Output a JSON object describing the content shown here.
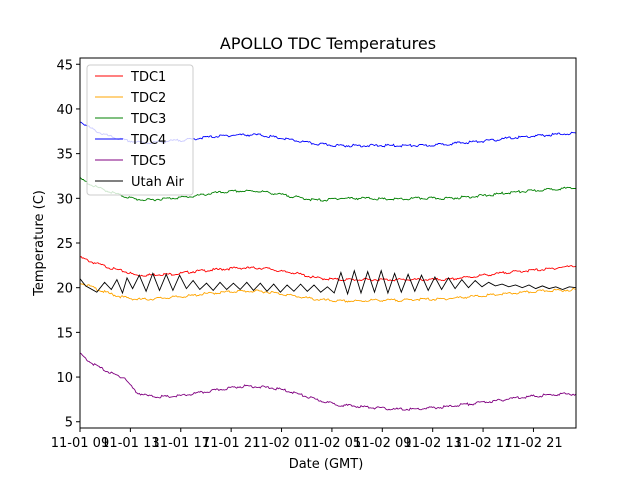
{
  "chart_data": {
    "type": "line",
    "title": "APOLLO TDC Temperatures",
    "xlabel": "Date (GMT)",
    "ylabel": "Temperature (C)",
    "xlim": [
      0,
      44.3
    ],
    "ylim": [
      4.3,
      45.7
    ],
    "yticks": [
      5,
      10,
      15,
      20,
      25,
      30,
      35,
      40,
      45
    ],
    "xticks": [
      {
        "x": 0,
        "label": "11-01 09"
      },
      {
        "x": 4.5,
        "label": "11-01 13"
      },
      {
        "x": 9,
        "label": "11-01 17"
      },
      {
        "x": 13.5,
        "label": "11-01 21"
      },
      {
        "x": 18,
        "label": "11-02 01"
      },
      {
        "x": 22.5,
        "label": "11-02 05"
      },
      {
        "x": 27,
        "label": "11-02 09"
      },
      {
        "x": 31.5,
        "label": "11-02 13"
      },
      {
        "x": 36,
        "label": "11-02 17"
      },
      {
        "x": 40.5,
        "label": "11-02 21"
      }
    ],
    "legend_position": "top-left",
    "series": [
      {
        "name": "TDC1",
        "color": "#ff0000",
        "x": [
          0,
          1,
          2,
          3,
          4,
          5,
          6,
          7,
          8,
          9,
          10,
          11,
          12,
          13,
          14,
          15,
          16,
          17,
          18,
          19,
          20,
          21,
          22,
          23,
          24,
          25,
          26,
          27,
          28,
          29,
          30,
          31,
          32,
          33,
          34,
          35,
          36,
          37,
          38,
          39,
          40,
          41,
          42,
          43,
          44.3
        ],
        "y": [
          23.4,
          22.9,
          22.5,
          22.1,
          21.8,
          21.4,
          21.4,
          21.5,
          21.5,
          21.6,
          21.8,
          21.9,
          22.0,
          22.1,
          22.2,
          22.2,
          22.2,
          22.1,
          21.8,
          21.7,
          21.4,
          21.1,
          21.0,
          20.9,
          20.9,
          20.9,
          20.9,
          20.9,
          20.9,
          20.9,
          20.9,
          20.9,
          20.9,
          20.9,
          21.1,
          21.2,
          21.4,
          21.5,
          21.7,
          21.8,
          21.9,
          22.0,
          22.1,
          22.3,
          22.4
        ]
      },
      {
        "name": "TDC2",
        "color": "#ffa500",
        "x": [
          0,
          1,
          2,
          3,
          4,
          5,
          6,
          7,
          8,
          9,
          10,
          11,
          12,
          13,
          14,
          15,
          16,
          17,
          18,
          19,
          20,
          21,
          22,
          23,
          24,
          25,
          26,
          27,
          28,
          29,
          30,
          31,
          32,
          33,
          34,
          35,
          36,
          37,
          38,
          39,
          40,
          41,
          42,
          43,
          44.3
        ],
        "y": [
          20.6,
          20.1,
          19.6,
          19.2,
          18.9,
          18.7,
          18.7,
          18.8,
          18.9,
          19.0,
          19.1,
          19.3,
          19.4,
          19.5,
          19.6,
          19.6,
          19.6,
          19.5,
          19.3,
          19.1,
          18.9,
          18.7,
          18.6,
          18.5,
          18.5,
          18.5,
          18.6,
          18.6,
          18.6,
          18.6,
          18.7,
          18.7,
          18.7,
          18.8,
          18.9,
          19.0,
          19.1,
          19.2,
          19.3,
          19.4,
          19.5,
          19.6,
          19.7,
          19.7,
          19.8
        ]
      },
      {
        "name": "TDC3",
        "color": "#008000",
        "x": [
          0,
          1,
          2,
          3,
          4,
          5,
          6,
          7,
          8,
          9,
          10,
          11,
          12,
          13,
          14,
          15,
          16,
          17,
          18,
          19,
          20,
          21,
          22,
          23,
          24,
          25,
          26,
          27,
          28,
          29,
          30,
          31,
          32,
          33,
          34,
          35,
          36,
          37,
          38,
          39,
          40,
          41,
          42,
          43,
          44.3
        ],
        "y": [
          32.2,
          31.5,
          31.0,
          30.6,
          30.2,
          29.9,
          29.8,
          29.9,
          30.0,
          30.1,
          30.2,
          30.4,
          30.6,
          30.7,
          30.8,
          30.8,
          30.8,
          30.6,
          30.4,
          30.2,
          30.0,
          29.8,
          29.8,
          30.0,
          30.0,
          30.0,
          30.0,
          29.9,
          29.9,
          29.9,
          30.0,
          30.0,
          30.0,
          30.0,
          30.1,
          30.2,
          30.3,
          30.4,
          30.6,
          30.7,
          30.8,
          30.9,
          31.0,
          31.1,
          31.1
        ]
      },
      {
        "name": "TDC4",
        "color": "#0000ff",
        "x": [
          0,
          1,
          2,
          3,
          4,
          5,
          6,
          7,
          8,
          9,
          10,
          11,
          12,
          13,
          14,
          15,
          16,
          17,
          18,
          19,
          20,
          21,
          22,
          23,
          24,
          25,
          26,
          27,
          28,
          29,
          30,
          31,
          32,
          33,
          34,
          35,
          36,
          37,
          38,
          39,
          40,
          41,
          42,
          43,
          44.3
        ],
        "y": [
          38.6,
          37.8,
          37.2,
          36.8,
          36.5,
          36.3,
          36.2,
          36.3,
          36.4,
          36.5,
          36.6,
          36.8,
          36.9,
          37.0,
          37.1,
          37.1,
          37.1,
          36.9,
          36.7,
          36.5,
          36.3,
          36.1,
          36.0,
          35.9,
          35.9,
          35.9,
          35.9,
          35.9,
          35.9,
          35.9,
          35.9,
          35.9,
          36.0,
          36.1,
          36.2,
          36.3,
          36.4,
          36.5,
          36.7,
          36.8,
          36.9,
          37.0,
          37.1,
          37.2,
          37.3
        ]
      },
      {
        "name": "TDC5",
        "color": "#800080",
        "x": [
          0,
          1,
          2,
          3,
          4,
          5,
          6,
          7,
          8,
          9,
          10,
          11,
          12,
          13,
          14,
          15,
          16,
          17,
          18,
          19,
          20,
          21,
          22,
          23,
          24,
          25,
          26,
          27,
          28,
          29,
          30,
          31,
          32,
          33,
          34,
          35,
          36,
          37,
          38,
          39,
          40,
          41,
          42,
          43,
          44.3
        ],
        "y": [
          12.6,
          11.6,
          10.9,
          10.3,
          9.9,
          8.3,
          7.9,
          7.8,
          7.8,
          7.9,
          8.1,
          8.3,
          8.5,
          8.7,
          8.9,
          9.0,
          8.9,
          8.8,
          8.6,
          8.3,
          7.9,
          7.5,
          7.2,
          6.9,
          6.8,
          6.7,
          6.6,
          6.5,
          6.4,
          6.4,
          6.4,
          6.5,
          6.6,
          6.7,
          6.9,
          7.0,
          7.2,
          7.3,
          7.5,
          7.7,
          7.8,
          7.9,
          8.0,
          8.1,
          8.1
        ]
      },
      {
        "name": "Utah Air",
        "color": "#000000",
        "x": [
          0,
          0.5,
          1.5,
          2.2,
          2.8,
          3.3,
          3.8,
          4.2,
          4.7,
          5.3,
          5.9,
          6.5,
          7.1,
          7.7,
          8.3,
          8.9,
          9.5,
          10.1,
          10.7,
          11.3,
          11.9,
          12.5,
          13.1,
          13.7,
          14.3,
          14.9,
          15.5,
          16.1,
          16.7,
          17.3,
          17.9,
          18.5,
          19.1,
          19.7,
          20.3,
          20.9,
          21.5,
          22.1,
          22.7,
          23.3,
          23.9,
          24.5,
          25.1,
          25.7,
          26.3,
          26.9,
          27.5,
          28.1,
          28.7,
          29.3,
          29.9,
          30.5,
          31.1,
          31.7,
          32.3,
          32.9,
          33.5,
          34.1,
          34.7,
          35.3,
          35.9,
          36.5,
          37.1,
          37.7,
          38.3,
          38.9,
          39.5,
          40.1,
          40.7,
          41.3,
          41.9,
          42.5,
          43.1,
          43.7,
          44.3
        ],
        "y": [
          21.0,
          20.2,
          19.5,
          20.6,
          19.8,
          20.9,
          19.4,
          21.1,
          19.9,
          21.4,
          19.6,
          21.6,
          19.7,
          21.5,
          19.7,
          21.4,
          19.9,
          20.8,
          19.8,
          20.5,
          19.7,
          20.6,
          19.8,
          20.5,
          19.8,
          20.6,
          19.7,
          20.5,
          19.6,
          20.4,
          19.5,
          20.3,
          19.6,
          20.4,
          19.6,
          20.3,
          19.5,
          20.1,
          19.4,
          21.7,
          19.3,
          21.9,
          19.4,
          21.8,
          19.5,
          21.9,
          19.4,
          21.6,
          19.5,
          21.5,
          19.6,
          21.4,
          19.7,
          21.2,
          19.8,
          21.1,
          19.9,
          20.9,
          20.0,
          20.8,
          20.1,
          20.6,
          20.2,
          20.4,
          20.1,
          20.3,
          20.0,
          20.3,
          19.9,
          20.2,
          19.9,
          20.1,
          19.8,
          20.1,
          20.0
        ]
      }
    ]
  }
}
